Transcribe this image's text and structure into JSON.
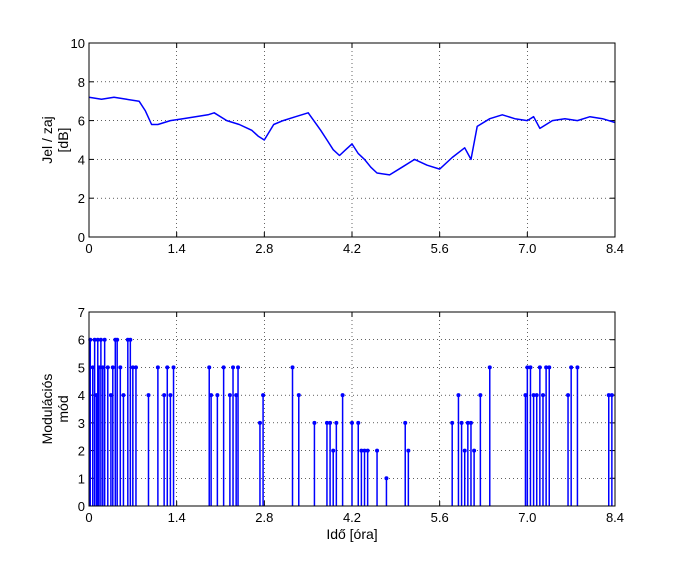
{
  "chart_data": [
    {
      "type": "line",
      "title": "",
      "xlabel": "",
      "ylabel": [
        "Jel / zaj",
        "[dB]"
      ],
      "xlim": [
        0,
        8.4
      ],
      "ylim": [
        0,
        10
      ],
      "xticks": [
        "0",
        "1.4",
        "2.8",
        "4.2",
        "5.6",
        "7.0",
        "8.4"
      ],
      "yticks": [
        "0",
        "2",
        "4",
        "6",
        "8",
        "10"
      ],
      "grid": true,
      "color": "#0000ff",
      "series": [
        {
          "x": [
            0,
            0.2,
            0.4,
            0.6,
            0.8,
            0.9,
            1.0,
            1.1,
            1.3,
            1.5,
            1.7,
            1.9,
            2.0,
            2.2,
            2.4,
            2.6,
            2.7,
            2.8,
            2.95,
            3.1,
            3.3,
            3.5,
            3.7,
            3.8,
            3.9,
            4.0,
            4.1,
            4.2,
            4.3,
            4.4,
            4.5,
            4.6,
            4.8,
            5.0,
            5.2,
            5.4,
            5.6,
            5.8,
            6.0,
            6.1,
            6.2,
            6.4,
            6.6,
            6.8,
            7.0,
            7.1,
            7.2,
            7.4,
            7.6,
            7.8,
            8.0,
            8.2,
            8.4
          ],
          "y": [
            7.2,
            7.1,
            7.2,
            7.1,
            7.0,
            6.5,
            5.8,
            5.8,
            6.0,
            6.1,
            6.2,
            6.3,
            6.4,
            6.0,
            5.8,
            5.5,
            5.2,
            5.0,
            5.8,
            6.0,
            6.2,
            6.4,
            5.5,
            5.0,
            4.5,
            4.2,
            4.5,
            4.8,
            4.3,
            4.0,
            3.6,
            3.3,
            3.2,
            3.6,
            4.0,
            3.7,
            3.5,
            4.1,
            4.6,
            4.0,
            5.7,
            6.1,
            6.3,
            6.1,
            6.0,
            6.2,
            5.6,
            6.0,
            6.1,
            6.0,
            6.2,
            6.1,
            5.9
          ]
        }
      ]
    },
    {
      "type": "stem",
      "title": "",
      "xlabel": "Idő [óra]",
      "ylabel": [
        "Modulációs",
        "mód"
      ],
      "xlim": [
        0,
        8.4
      ],
      "ylim": [
        0,
        7
      ],
      "xticks": [
        "0",
        "1.4",
        "2.8",
        "4.2",
        "5.6",
        "7.0",
        "8.4"
      ],
      "yticks": [
        "0",
        "1",
        "2",
        "3",
        "4",
        "5",
        "6",
        "7"
      ],
      "grid": true,
      "color": "#0000ff",
      "series": [
        {
          "x": [
            0.02,
            0.06,
            0.09,
            0.12,
            0.14,
            0.16,
            0.19,
            0.22,
            0.25,
            0.3,
            0.35,
            0.38,
            0.42,
            0.45,
            0.5,
            0.55,
            0.62,
            0.66,
            0.7,
            0.75,
            0.95,
            1.1,
            1.2,
            1.25,
            1.3,
            1.35,
            1.92,
            1.95,
            2.05,
            2.15,
            2.25,
            2.3,
            2.35,
            2.38,
            2.73,
            2.78,
            3.25,
            3.35,
            3.6,
            3.8,
            3.85,
            3.9,
            3.95,
            4.05,
            4.2,
            4.3,
            4.35,
            4.4,
            4.45,
            4.6,
            4.75,
            5.05,
            5.1,
            5.8,
            5.9,
            5.95,
            6.0,
            6.05,
            6.1,
            6.15,
            6.25,
            6.4,
            6.97,
            7.0,
            7.05,
            7.1,
            7.15,
            7.2,
            7.25,
            7.3,
            7.35,
            7.65,
            7.7,
            7.8,
            8.3,
            8.35
          ],
          "y": [
            6,
            5,
            6,
            4,
            6,
            5,
            6,
            5,
            6,
            5,
            4,
            5,
            6,
            6,
            5,
            4,
            6,
            6,
            5,
            5,
            4,
            5,
            4,
            5,
            4,
            5,
            5,
            4,
            4,
            5,
            4,
            5,
            4,
            5,
            3,
            4,
            5,
            4,
            3,
            3,
            3,
            2,
            3,
            4,
            3,
            3,
            2,
            2,
            2,
            2,
            1,
            3,
            2,
            3,
            4,
            3,
            2,
            3,
            3,
            2,
            4,
            5,
            4,
            5,
            5,
            4,
            4,
            5,
            4,
            5,
            5,
            4,
            5,
            5,
            4,
            4
          ]
        }
      ]
    }
  ]
}
